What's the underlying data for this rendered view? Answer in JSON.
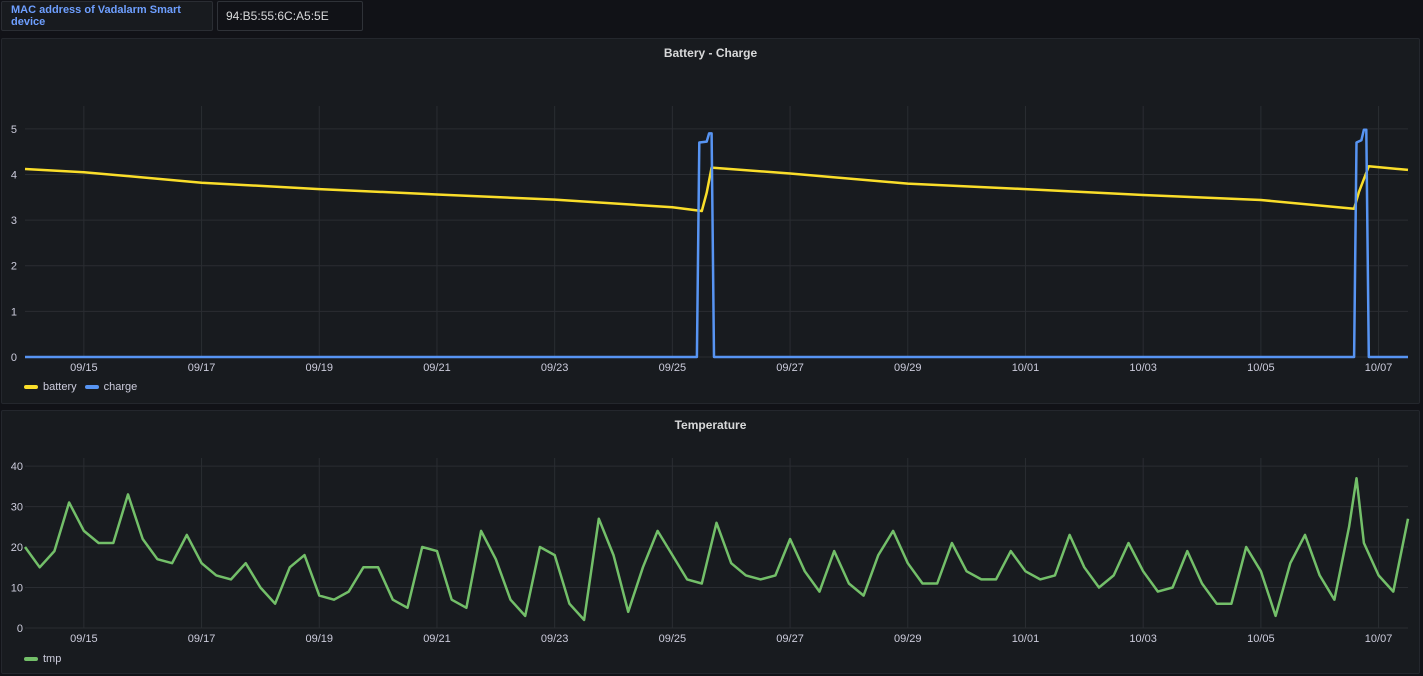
{
  "variable": {
    "label": "MAC address of Vadalarm Smart device",
    "value": "94:B5:55:6C:A5:5E"
  },
  "colors": {
    "battery": "#fade2a",
    "charge": "#5794f2",
    "tmp": "#73bf69",
    "grid": "#2a2d32",
    "accent": "#6e9fff"
  },
  "chart_data": [
    {
      "type": "line",
      "title": "Battery - Charge",
      "x_ticks": [
        "09/15",
        "09/17",
        "09/19",
        "09/21",
        "09/23",
        "09/25",
        "09/27",
        "09/29",
        "10/01",
        "10/03",
        "10/05",
        "10/07"
      ],
      "y_ticks": [
        "0",
        "1",
        "2",
        "3",
        "4",
        "5"
      ],
      "ylim": [
        0,
        5.5
      ],
      "xlim": [
        "09/14 00:00",
        "10/07 12:00"
      ],
      "legend": "bottom-left",
      "series": [
        {
          "name": "battery",
          "x": [
            "09/14",
            "09/15",
            "09/17",
            "09/19",
            "09/21",
            "09/23",
            "09/25",
            "09/25 12:00",
            "09/25 14:00",
            "09/25 16:00",
            "09/27",
            "09/29",
            "10/01",
            "10/03",
            "10/05",
            "10/06 14:00",
            "10/06 16:00",
            "10/06 20:00",
            "10/07 12:00"
          ],
          "values": [
            4.12,
            4.05,
            3.82,
            3.68,
            3.56,
            3.45,
            3.28,
            3.2,
            3.6,
            4.15,
            4.02,
            3.8,
            3.68,
            3.55,
            3.44,
            3.25,
            3.62,
            4.18,
            4.1
          ]
        },
        {
          "name": "charge",
          "x": [
            "09/14",
            "09/25 10:00",
            "09/25 11:00",
            "09/25 14:00",
            "09/25 15:00",
            "09/25 16:00",
            "09/25 17:00",
            "10/06 14:00",
            "10/06 15:00",
            "10/06 17:00",
            "10/06 18:00",
            "10/06 19:00",
            "10/06 20:00",
            "10/07 12:00"
          ],
          "values": [
            0,
            0,
            4.7,
            4.72,
            4.9,
            4.9,
            0,
            0,
            4.7,
            4.75,
            4.98,
            4.98,
            0,
            0
          ]
        }
      ]
    },
    {
      "type": "line",
      "title": "Temperature",
      "x_ticks": [
        "09/15",
        "09/17",
        "09/19",
        "09/21",
        "09/23",
        "09/25",
        "09/27",
        "09/29",
        "10/01",
        "10/03",
        "10/05",
        "10/07"
      ],
      "y_ticks": [
        "0",
        "10",
        "20",
        "30",
        "40"
      ],
      "ylim": [
        0,
        42
      ],
      "xlim": [
        "09/14 00:00",
        "10/07 12:00"
      ],
      "legend": "bottom-left",
      "series": [
        {
          "name": "tmp",
          "x": [
            "09/14",
            "09/14 06:00",
            "09/14 12:00",
            "09/14 18:00",
            "09/15 00:00",
            "09/15 06:00",
            "09/15 12:00",
            "09/15 18:00",
            "09/16 00:00",
            "09/16 06:00",
            "09/16 12:00",
            "09/16 18:00",
            "09/17 00:00",
            "09/17 06:00",
            "09/17 12:00",
            "09/17 18:00",
            "09/18 00:00",
            "09/18 06:00",
            "09/18 12:00",
            "09/18 18:00",
            "09/19 00:00",
            "09/19 06:00",
            "09/19 12:00",
            "09/19 18:00",
            "09/20 00:00",
            "09/20 06:00",
            "09/20 12:00",
            "09/20 18:00",
            "09/21 00:00",
            "09/21 06:00",
            "09/21 12:00",
            "09/21 18:00",
            "09/22 00:00",
            "09/22 06:00",
            "09/22 12:00",
            "09/22 18:00",
            "09/23 00:00",
            "09/23 06:00",
            "09/23 12:00",
            "09/23 18:00",
            "09/24 00:00",
            "09/24 06:00",
            "09/24 12:00",
            "09/24 18:00",
            "09/25 00:00",
            "09/25 06:00",
            "09/25 12:00",
            "09/25 18:00",
            "09/26 00:00",
            "09/26 06:00",
            "09/26 12:00",
            "09/26 18:00",
            "09/27 00:00",
            "09/27 06:00",
            "09/27 12:00",
            "09/27 18:00",
            "09/28 00:00",
            "09/28 06:00",
            "09/28 12:00",
            "09/28 18:00",
            "09/29 00:00",
            "09/29 06:00",
            "09/29 12:00",
            "09/29 18:00",
            "09/30 00:00",
            "09/30 06:00",
            "09/30 12:00",
            "09/30 18:00",
            "10/01 00:00",
            "10/01 06:00",
            "10/01 12:00",
            "10/01 18:00",
            "10/02 00:00",
            "10/02 06:00",
            "10/02 12:00",
            "10/02 18:00",
            "10/03 00:00",
            "10/03 06:00",
            "10/03 12:00",
            "10/03 18:00",
            "10/04 00:00",
            "10/04 06:00",
            "10/04 12:00",
            "10/04 18:00",
            "10/05 00:00",
            "10/05 06:00",
            "10/05 12:00",
            "10/05 18:00",
            "10/06 00:00",
            "10/06 06:00",
            "10/06 12:00",
            "10/06 15:00",
            "10/06 18:00",
            "10/07 00:00",
            "10/07 06:00",
            "10/07 12:00"
          ],
          "values": [
            20,
            15,
            19,
            31,
            24,
            21,
            21,
            33,
            22,
            17,
            16,
            23,
            16,
            13,
            12,
            16,
            10,
            6,
            15,
            18,
            8,
            7,
            9,
            15,
            15,
            7,
            5,
            20,
            19,
            7,
            5,
            24,
            17,
            7,
            3,
            20,
            18,
            6,
            2,
            27,
            18,
            4,
            15,
            24,
            18,
            12,
            11,
            26,
            16,
            13,
            12,
            13,
            22,
            14,
            9,
            19,
            11,
            8,
            18,
            24,
            16,
            11,
            11,
            21,
            14,
            12,
            12,
            19,
            14,
            12,
            13,
            23,
            15,
            10,
            13,
            21,
            14,
            9,
            10,
            19,
            11,
            6,
            6,
            20,
            14,
            3,
            16,
            23,
            13,
            7,
            25,
            37,
            21,
            13,
            9,
            27
          ]
        }
      ]
    }
  ]
}
